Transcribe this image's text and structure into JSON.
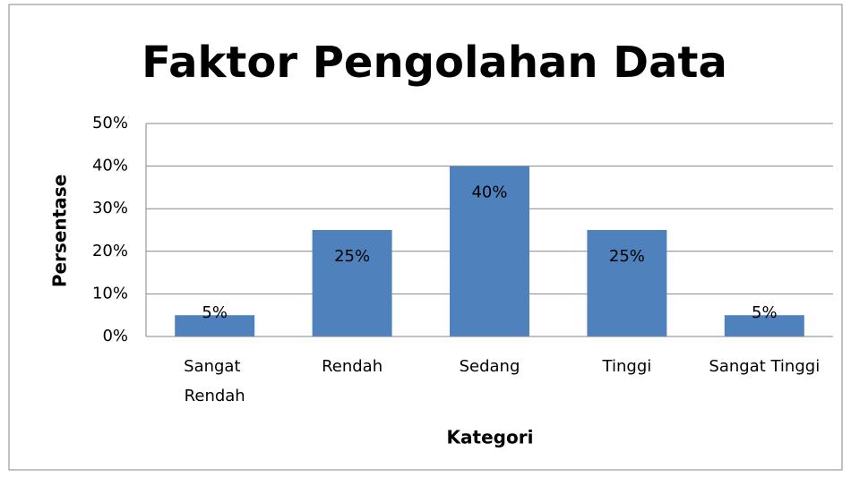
{
  "chart_data": {
    "type": "bar",
    "title": "Faktor Pengolahan Data",
    "x_label": "Kategori",
    "y_label": "Persentase",
    "categories": [
      "Sangat Rendah",
      "Rendah",
      "Sedang",
      "Tinggi",
      "Sangat Tinggi"
    ],
    "values": [
      5,
      25,
      40,
      25,
      5
    ],
    "value_labels": [
      "5%",
      "25%",
      "40%",
      "25%",
      "5%"
    ],
    "color": "#4f81bd",
    "ylim": [
      0,
      50
    ],
    "yticks": [
      {
        "value": 0,
        "label": "0%"
      },
      {
        "value": 10,
        "label": "10%"
      },
      {
        "value": 20,
        "label": "20%"
      },
      {
        "value": 30,
        "label": "30%"
      },
      {
        "value": 40,
        "label": "40%"
      },
      {
        "value": 50,
        "label": "50%"
      }
    ],
    "grid": true
  }
}
